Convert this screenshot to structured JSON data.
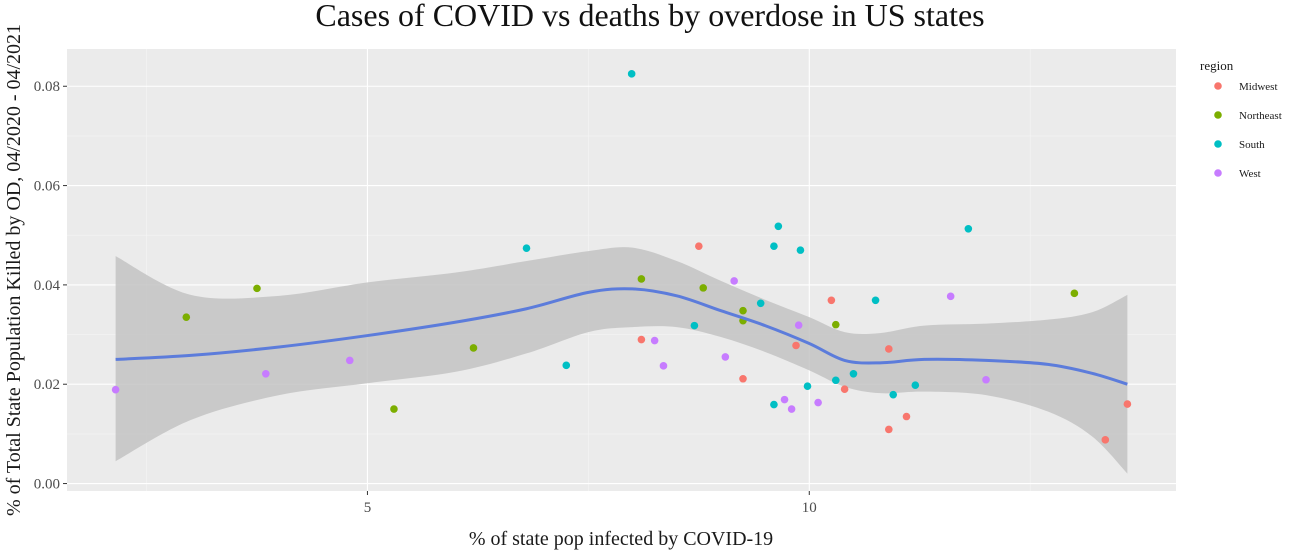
{
  "chart_data": {
    "type": "scatter",
    "title": "Cases of COVID vs deaths by overdose in US states",
    "xlabel": "% of state pop infected by COVID-19",
    "ylabel": "% of Total State Population Killed by OD, 04/2020 - 04/2021",
    "xlim": [
      1.6,
      14.15
    ],
    "ylim": [
      -0.0015,
      0.0875
    ],
    "x_ticks": [
      5,
      10
    ],
    "x_tick_labels": [
      "5",
      "10"
    ],
    "y_ticks": [
      0.0,
      0.02,
      0.04,
      0.06,
      0.08
    ],
    "y_tick_labels": [
      "0.00",
      "0.02",
      "0.04",
      "0.06",
      "0.08"
    ],
    "grid": true,
    "legend": {
      "title": "region",
      "position": "right",
      "entries": [
        {
          "name": "Midwest",
          "color": "#F8766D"
        },
        {
          "name": "Northeast",
          "color": "#7CAE00"
        },
        {
          "name": "South",
          "color": "#00BFC4"
        },
        {
          "name": "West",
          "color": "#C77CFF"
        }
      ]
    },
    "series": [
      {
        "name": "Midwest",
        "color": "#F8766D",
        "points": [
          {
            "x": 8.1,
            "y": 0.029
          },
          {
            "x": 8.75,
            "y": 0.0478
          },
          {
            "x": 9.25,
            "y": 0.0211
          },
          {
            "x": 9.85,
            "y": 0.0278
          },
          {
            "x": 10.25,
            "y": 0.0369
          },
          {
            "x": 10.4,
            "y": 0.019
          },
          {
            "x": 10.9,
            "y": 0.0271
          },
          {
            "x": 10.9,
            "y": 0.0109
          },
          {
            "x": 11.1,
            "y": 0.0135
          },
          {
            "x": 13.35,
            "y": 0.0088
          },
          {
            "x": 13.6,
            "y": 0.016
          }
        ]
      },
      {
        "name": "Northeast",
        "color": "#7CAE00",
        "points": [
          {
            "x": 2.95,
            "y": 0.0335
          },
          {
            "x": 3.75,
            "y": 0.0393
          },
          {
            "x": 5.3,
            "y": 0.015
          },
          {
            "x": 6.2,
            "y": 0.0273
          },
          {
            "x": 8.1,
            "y": 0.0412
          },
          {
            "x": 8.8,
            "y": 0.0394
          },
          {
            "x": 9.25,
            "y": 0.0348
          },
          {
            "x": 9.25,
            "y": 0.0328
          },
          {
            "x": 10.3,
            "y": 0.032
          },
          {
            "x": 13.0,
            "y": 0.0383
          }
        ]
      },
      {
        "name": "South",
        "color": "#00BFC4",
        "points": [
          {
            "x": 7.99,
            "y": 0.0825
          },
          {
            "x": 6.8,
            "y": 0.0474
          },
          {
            "x": 7.25,
            "y": 0.0238
          },
          {
            "x": 8.7,
            "y": 0.0318
          },
          {
            "x": 9.45,
            "y": 0.0363
          },
          {
            "x": 9.6,
            "y": 0.0478
          },
          {
            "x": 9.65,
            "y": 0.0518
          },
          {
            "x": 9.9,
            "y": 0.047
          },
          {
            "x": 9.6,
            "y": 0.0159
          },
          {
            "x": 9.98,
            "y": 0.0196
          },
          {
            "x": 10.3,
            "y": 0.0208
          },
          {
            "x": 10.5,
            "y": 0.0221
          },
          {
            "x": 10.75,
            "y": 0.0369
          },
          {
            "x": 10.95,
            "y": 0.0179
          },
          {
            "x": 11.2,
            "y": 0.0198
          },
          {
            "x": 11.8,
            "y": 0.0513
          }
        ]
      },
      {
        "name": "West",
        "color": "#C77CFF",
        "points": [
          {
            "x": 2.15,
            "y": 0.0189
          },
          {
            "x": 3.85,
            "y": 0.0221
          },
          {
            "x": 4.8,
            "y": 0.0248
          },
          {
            "x": 8.25,
            "y": 0.0288
          },
          {
            "x": 8.35,
            "y": 0.0237
          },
          {
            "x": 9.05,
            "y": 0.0255
          },
          {
            "x": 9.15,
            "y": 0.0408
          },
          {
            "x": 9.72,
            "y": 0.0169
          },
          {
            "x": 9.8,
            "y": 0.015
          },
          {
            "x": 9.88,
            "y": 0.0319
          },
          {
            "x": 10.1,
            "y": 0.0163
          },
          {
            "x": 11.6,
            "y": 0.0377
          },
          {
            "x": 12.0,
            "y": 0.0209
          }
        ]
      }
    ],
    "smooth": {
      "color": "#5C7CDB",
      "band_color": "#c3c3c3",
      "points": [
        {
          "x": 2.15,
          "y": 0.025,
          "lo": 0.0045,
          "hi": 0.0458
        },
        {
          "x": 3.0,
          "y": 0.0258,
          "lo": 0.0128,
          "hi": 0.038
        },
        {
          "x": 4.0,
          "y": 0.0275,
          "lo": 0.0178,
          "hi": 0.0378
        },
        {
          "x": 5.0,
          "y": 0.0298,
          "lo": 0.0202,
          "hi": 0.0405
        },
        {
          "x": 6.0,
          "y": 0.0325,
          "lo": 0.0225,
          "hi": 0.0425
        },
        {
          "x": 6.8,
          "y": 0.0352,
          "lo": 0.0262,
          "hi": 0.0448
        },
        {
          "x": 7.5,
          "y": 0.0385,
          "lo": 0.0305,
          "hi": 0.0468
        },
        {
          "x": 8.0,
          "y": 0.0392,
          "lo": 0.0315,
          "hi": 0.0475
        },
        {
          "x": 8.5,
          "y": 0.0378,
          "lo": 0.0315,
          "hi": 0.0448
        },
        {
          "x": 9.0,
          "y": 0.0348,
          "lo": 0.0295,
          "hi": 0.0408
        },
        {
          "x": 9.5,
          "y": 0.0318,
          "lo": 0.0265,
          "hi": 0.037
        },
        {
          "x": 10.0,
          "y": 0.0282,
          "lo": 0.0228,
          "hi": 0.0335
        },
        {
          "x": 10.4,
          "y": 0.0248,
          "lo": 0.0195,
          "hi": 0.0305
        },
        {
          "x": 10.8,
          "y": 0.0243,
          "lo": 0.0182,
          "hi": 0.0303
        },
        {
          "x": 11.3,
          "y": 0.025,
          "lo": 0.0185,
          "hi": 0.0318
        },
        {
          "x": 12.0,
          "y": 0.0248,
          "lo": 0.0178,
          "hi": 0.0322
        },
        {
          "x": 12.7,
          "y": 0.024,
          "lo": 0.0145,
          "hi": 0.033
        },
        {
          "x": 13.2,
          "y": 0.0222,
          "lo": 0.0095,
          "hi": 0.0345
        },
        {
          "x": 13.6,
          "y": 0.02,
          "lo": 0.002,
          "hi": 0.038
        }
      ]
    }
  }
}
